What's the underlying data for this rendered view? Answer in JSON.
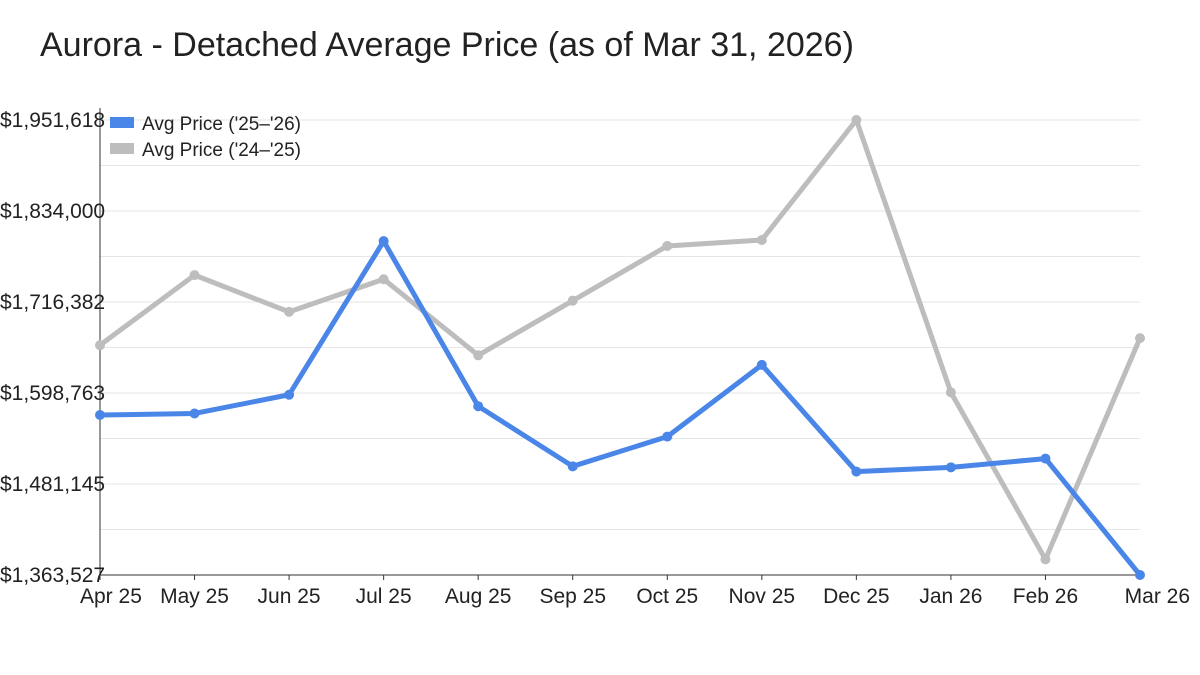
{
  "title": "Aurora - Detached Average Price (as of Mar 31, 2026)",
  "chart_data": {
    "type": "line",
    "categories": [
      "Apr 25",
      "May 25",
      "Jun 25",
      "Jul 25",
      "Aug 25",
      "Sep 25",
      "Oct 25",
      "Nov 25",
      "Dec 25",
      "Jan 26",
      "Feb 26",
      "Mar 26"
    ],
    "series": [
      {
        "name": "Avg Price ('25–'26)",
        "color": "#4a86e8",
        "values": [
          1570300,
          1572300,
          1596500,
          1795000,
          1581700,
          1504000,
          1542400,
          1635100,
          1497200,
          1502700,
          1514000,
          1363527
        ]
      },
      {
        "name": "Avg Price ('24–'25)",
        "color": "#bdbdbd",
        "values": [
          1660600,
          1751100,
          1703600,
          1745800,
          1647500,
          1718100,
          1788800,
          1796500,
          1951618,
          1599600,
          1383700,
          1669700
        ]
      }
    ],
    "yticks": [
      "$1,951,618",
      "$1,834,000",
      "$1,716,382",
      "$1,598,763",
      "$1,481,145",
      "$1,363,527"
    ],
    "ylim": [
      1363527,
      1951618
    ],
    "grid": true,
    "legend_position": "top-left"
  }
}
